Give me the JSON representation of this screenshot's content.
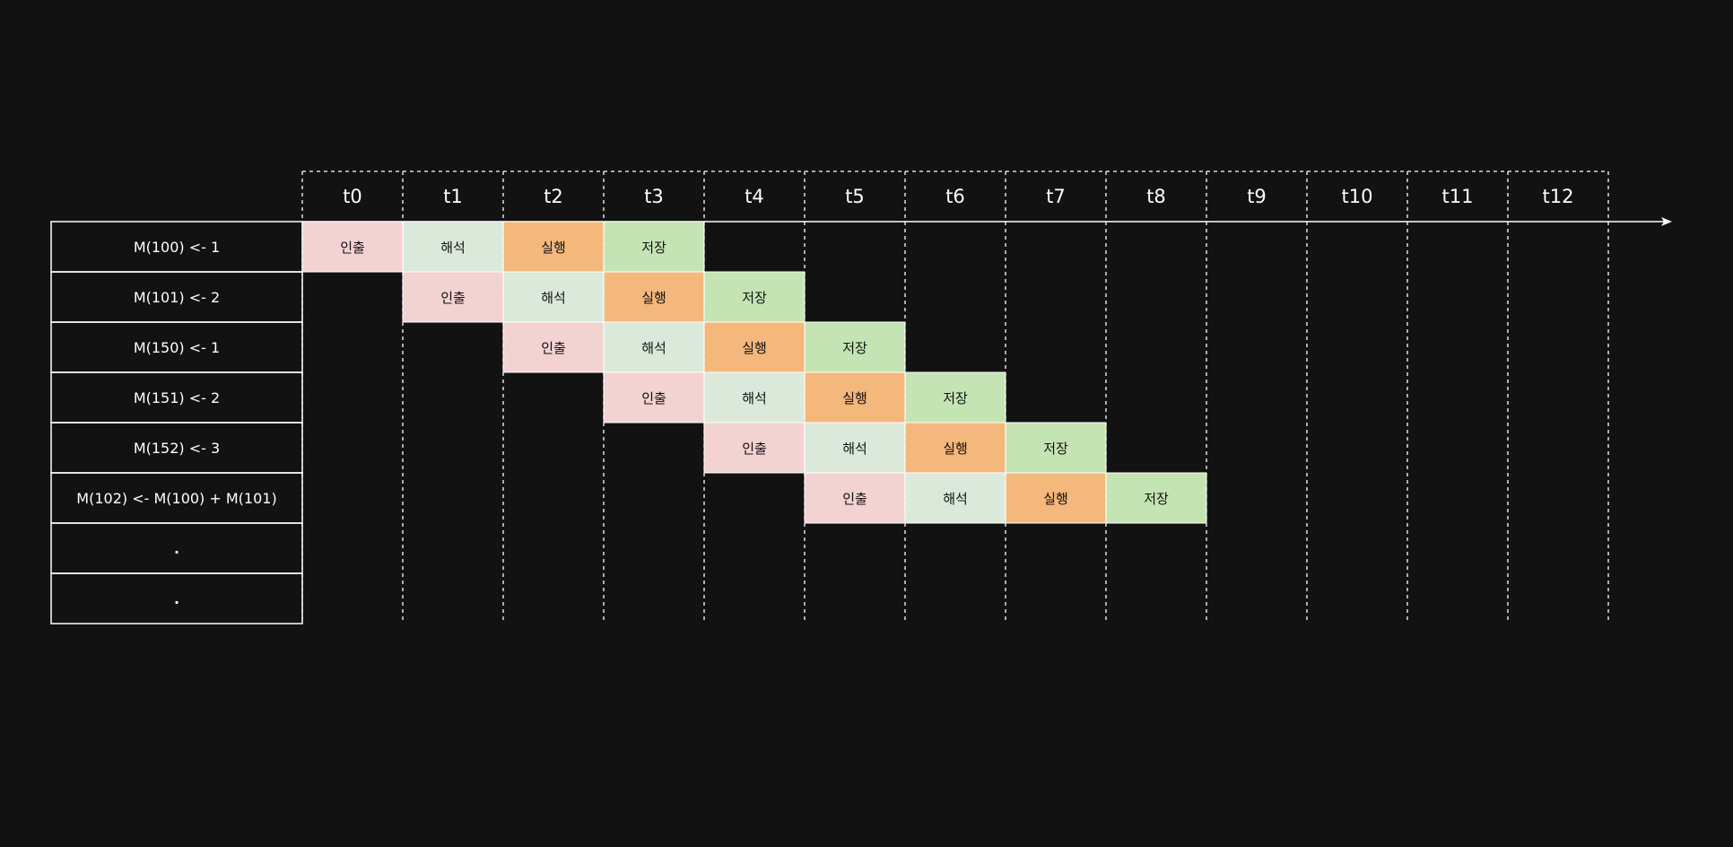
{
  "time_slots": [
    "t0",
    "t1",
    "t2",
    "t3",
    "t4",
    "t5",
    "t6",
    "t7",
    "t8",
    "t9",
    "t10",
    "t11",
    "t12"
  ],
  "instructions": [
    {
      "label": "M(100) <- 1",
      "highlight": false
    },
    {
      "label": "M(101) <- 2",
      "highlight": false
    },
    {
      "label": "M(150) <- 1",
      "highlight": false
    },
    {
      "label": "M(151) <- 2",
      "highlight": false
    },
    {
      "label": "M(152) <- 3",
      "highlight": false
    },
    {
      "label": "M(102) <- M(100) + M(101)",
      "highlight": true
    },
    {
      "label": ".",
      "highlight": false
    },
    {
      "label": ".",
      "highlight": false
    }
  ],
  "stages": [
    {
      "name": "인출",
      "color": "#f3d2d2"
    },
    {
      "name": "해석",
      "color": "#dbe9da"
    },
    {
      "name": "실행",
      "color": "#f4b77c"
    },
    {
      "name": "저장",
      "color": "#c5e4b3"
    }
  ],
  "pipeline": [
    {
      "row": 0,
      "start": 0
    },
    {
      "row": 1,
      "start": 1
    },
    {
      "row": 2,
      "start": 2
    },
    {
      "row": 3,
      "start": 3
    },
    {
      "row": 4,
      "start": 4
    },
    {
      "row": 5,
      "start": 5
    }
  ],
  "colors": {
    "background": "#121212",
    "line": "#ffffff",
    "text": "#ffffff",
    "highlight_text": "#e83ee6",
    "stage_text": "#111111"
  }
}
